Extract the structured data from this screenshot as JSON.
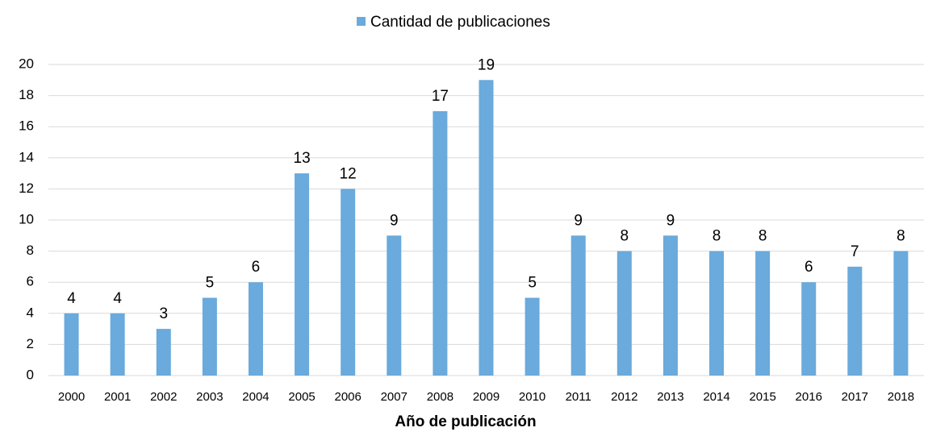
{
  "chart_data": {
    "type": "bar",
    "legend": "Cantidad de publicaciones",
    "x_label": "Año de publicación",
    "categories": [
      "2000",
      "2001",
      "2002",
      "2003",
      "2004",
      "2005",
      "2006",
      "2007",
      "2008",
      "2009",
      "2010",
      "2011",
      "2012",
      "2013",
      "2014",
      "2015",
      "2016",
      "2017",
      "2018"
    ],
    "values": [
      4,
      4,
      3,
      5,
      6,
      13,
      12,
      9,
      17,
      19,
      5,
      9,
      8,
      9,
      8,
      8,
      6,
      7,
      8
    ],
    "color": "#6aaadc",
    "ylim": [
      0,
      20
    ],
    "yticks": [
      0,
      2,
      4,
      6,
      8,
      10,
      12,
      14,
      16,
      18,
      20
    ],
    "grid": true
  }
}
